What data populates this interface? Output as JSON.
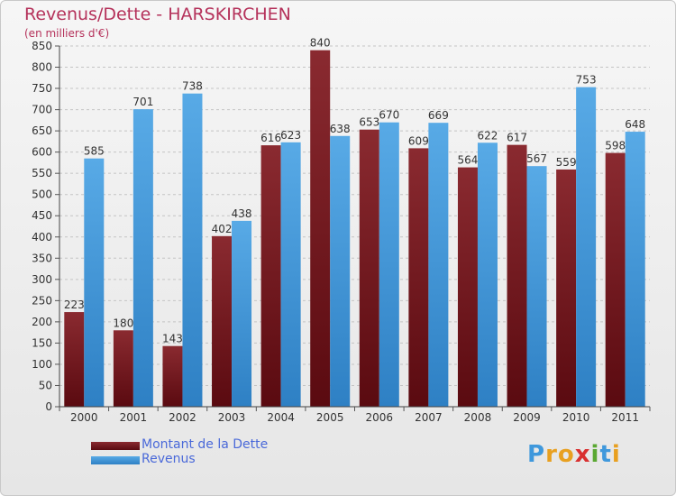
{
  "title": "Revenus/Dette - HARSKIRCHEN",
  "subtitle": "(en milliers d'€)",
  "colors": {
    "dette": "#7a1a22",
    "revenus": "#3f98dc",
    "title": "#b5325b",
    "legend_text": "#4a69d9"
  },
  "logo": {
    "letters": [
      "P",
      "r",
      "o",
      "x",
      "i",
      "t",
      "i"
    ]
  },
  "chart_data": {
    "type": "bar",
    "title": "Revenus/Dette - HARSKIRCHEN",
    "subtitle": "(en milliers d'€)",
    "xlabel": "",
    "ylabel": "",
    "ylim": [
      0,
      850
    ],
    "yticks": [
      0,
      50,
      100,
      150,
      200,
      250,
      300,
      350,
      400,
      450,
      500,
      550,
      600,
      650,
      700,
      750,
      800,
      850
    ],
    "grid": true,
    "legend_position": "bottom-left",
    "categories": [
      "2000",
      "2001",
      "2002",
      "2003",
      "2004",
      "2005",
      "2006",
      "2007",
      "2008",
      "2009",
      "2010",
      "2011"
    ],
    "series": [
      {
        "name": "Montant de la Dette",
        "values": [
          223,
          180,
          143,
          402,
          616,
          840,
          653,
          609,
          564,
          617,
          559,
          598
        ]
      },
      {
        "name": "Revenus",
        "values": [
          585,
          701,
          738,
          438,
          623,
          638,
          670,
          669,
          622,
          567,
          753,
          648
        ]
      }
    ]
  }
}
